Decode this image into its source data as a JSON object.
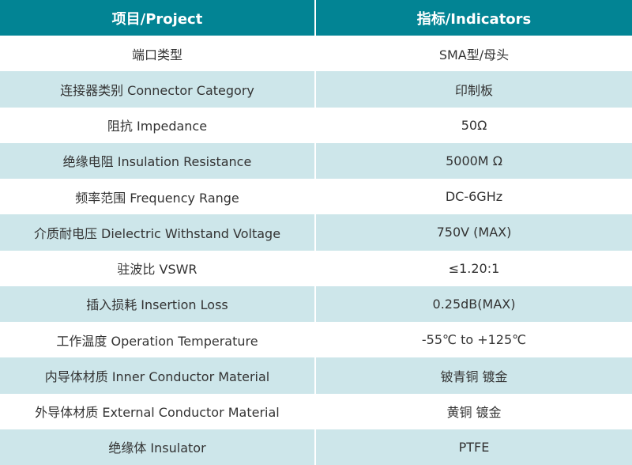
{
  "colors": {
    "header": "#028494",
    "alt_row": "#cde6ea",
    "text": "#333333"
  },
  "header": {
    "col1": "项目/Project",
    "col2": "指标/Indicators"
  },
  "rows": [
    {
      "item": "端口类型",
      "value": "SMA型/母头"
    },
    {
      "item": "连接器类别 Connector Category",
      "value": "印制板"
    },
    {
      "item": "阻抗 Impedance",
      "value": "50Ω"
    },
    {
      "item": "绝缘电阻 Insulation Resistance",
      "value": "5000M Ω"
    },
    {
      "item": "频率范围 Frequency Range",
      "value": "DC-6GHz"
    },
    {
      "item": "介质耐电压 Dielectric Withstand Voltage",
      "value": "750V (MAX)"
    },
    {
      "item": "驻波比 VSWR",
      "value": "≤1.20:1"
    },
    {
      "item": "插入损耗 Insertion Loss",
      "value": "0.25dB(MAX)"
    },
    {
      "item": "工作温度 Operation Temperature",
      "value": "-55℃ to +125℃"
    },
    {
      "item": "内导体材质 Inner Conductor Material",
      "value": "铍青铜 镀金"
    },
    {
      "item": "外导体材质 External Conductor Material",
      "value": "黄铜 镀金"
    },
    {
      "item": "绝缘体 Insulator",
      "value": "PTFE"
    }
  ]
}
